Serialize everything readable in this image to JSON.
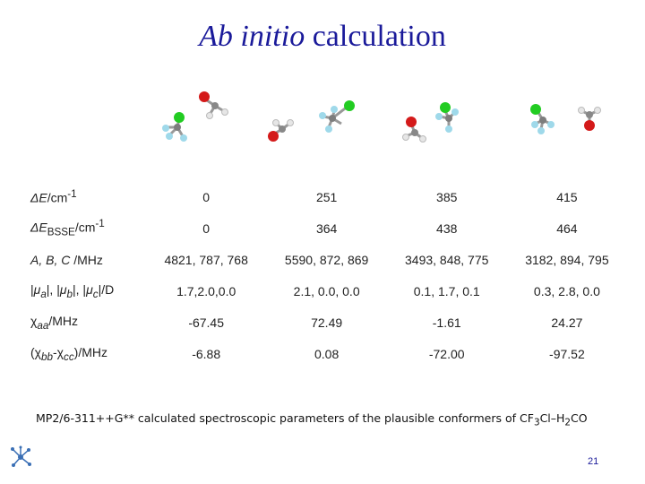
{
  "title": {
    "italic": "Ab initio",
    "rest": " calculation"
  },
  "table": {
    "rows": [
      {
        "label_main": "ΔE/cm",
        "label_sup": "-1",
        "values": [
          "0",
          "251",
          "385",
          "415"
        ]
      },
      {
        "label_main": "ΔE",
        "label_sub": "BSSE",
        "label_tail": "/cm",
        "label_sup": "-1",
        "values": [
          "0",
          "364",
          "438",
          "464"
        ]
      },
      {
        "label_main": "A, B, C /MHz",
        "values": [
          "4821, 787, 768",
          "5590, 872, 869",
          "3493, 848, 775",
          "3182, 894, 795"
        ]
      },
      {
        "label_main": "|μa|, |μb|, |μc|/D",
        "values": [
          "1.7,2.0,0.0",
          "2.1, 0.0, 0.0",
          "0.1, 1.7, 0.1",
          "0.3, 2.8, 0.0"
        ]
      },
      {
        "label_main": "χaa/MHz",
        "values": [
          "-67.45",
          "72.49",
          "-1.61",
          "24.27"
        ]
      },
      {
        "label_main": "(χbb-χcc)/MHz",
        "values": [
          "-6.88",
          "0.08",
          "-72.00",
          "-97.52"
        ]
      }
    ]
  },
  "caption": {
    "prefix": "MP2/6-311++G** calculated spectroscopic parameters of the plausible conformers of CF",
    "sub1": "3",
    "mid": "Cl–H",
    "sub2": "2",
    "suffix": "CO"
  },
  "page_number": "21",
  "colors": {
    "title": "#1a1a9a",
    "oxygen": "#d41a1a",
    "chlorine": "#22cc22",
    "fluorine": "#9fd9ea",
    "carbon": "#7d7d7d",
    "hydrogen": "#e6e6e6"
  }
}
